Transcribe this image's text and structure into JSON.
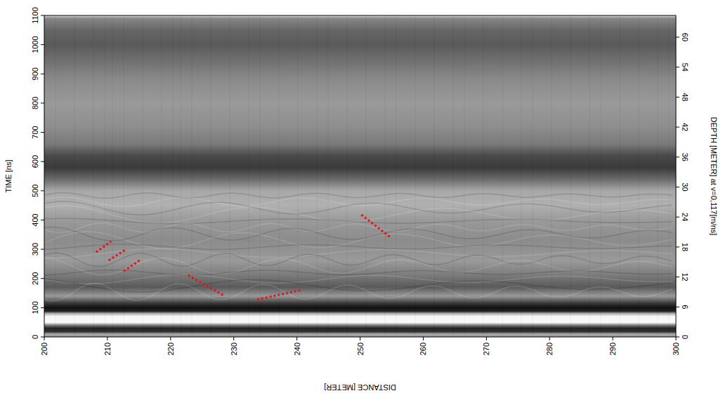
{
  "chart_data": {
    "type": "radargram",
    "xlabel": "DISTANCE [METER]",
    "ylabel": "TIME [ns]",
    "y2label": "DEPTH [METER] at v=0,117[m/ns]",
    "xlim": [
      200,
      300
    ],
    "xticks": [
      200,
      210,
      220,
      230,
      240,
      250,
      260,
      270,
      280,
      290,
      300
    ],
    "ylim": [
      0,
      1100
    ],
    "yticks": [
      0,
      100,
      200,
      300,
      400,
      500,
      600,
      700,
      800,
      900,
      1000,
      1100
    ],
    "y2lim": [
      0,
      64.35
    ],
    "y2ticks": [
      0,
      6,
      12,
      18,
      24,
      30,
      36,
      42,
      48,
      54,
      60
    ],
    "series": [
      {
        "color": "#e8141c",
        "line_style": "dotted",
        "x": [
          208.2,
          210.6
        ],
        "values": [
          290,
          327
        ]
      },
      {
        "color": "#e8141c",
        "line_style": "dotted",
        "x": [
          210.2,
          213.0
        ],
        "values": [
          262,
          300
        ]
      },
      {
        "color": "#e8141c",
        "line_style": "dotted",
        "x": [
          212.6,
          215.1
        ],
        "values": [
          225,
          262
        ]
      },
      {
        "color": "#e8141c",
        "line_style": "dotted",
        "x": [
          222.8,
          228.4
        ],
        "values": [
          211,
          142
        ]
      },
      {
        "color": "#e8141c",
        "line_style": "dotted",
        "x": [
          233.7,
          240.6
        ],
        "values": [
          128,
          160
        ]
      },
      {
        "color": "#e8141c",
        "line_style": "dotted",
        "x": [
          250.2,
          254.8
        ],
        "values": [
          418,
          341
        ]
      }
    ]
  }
}
